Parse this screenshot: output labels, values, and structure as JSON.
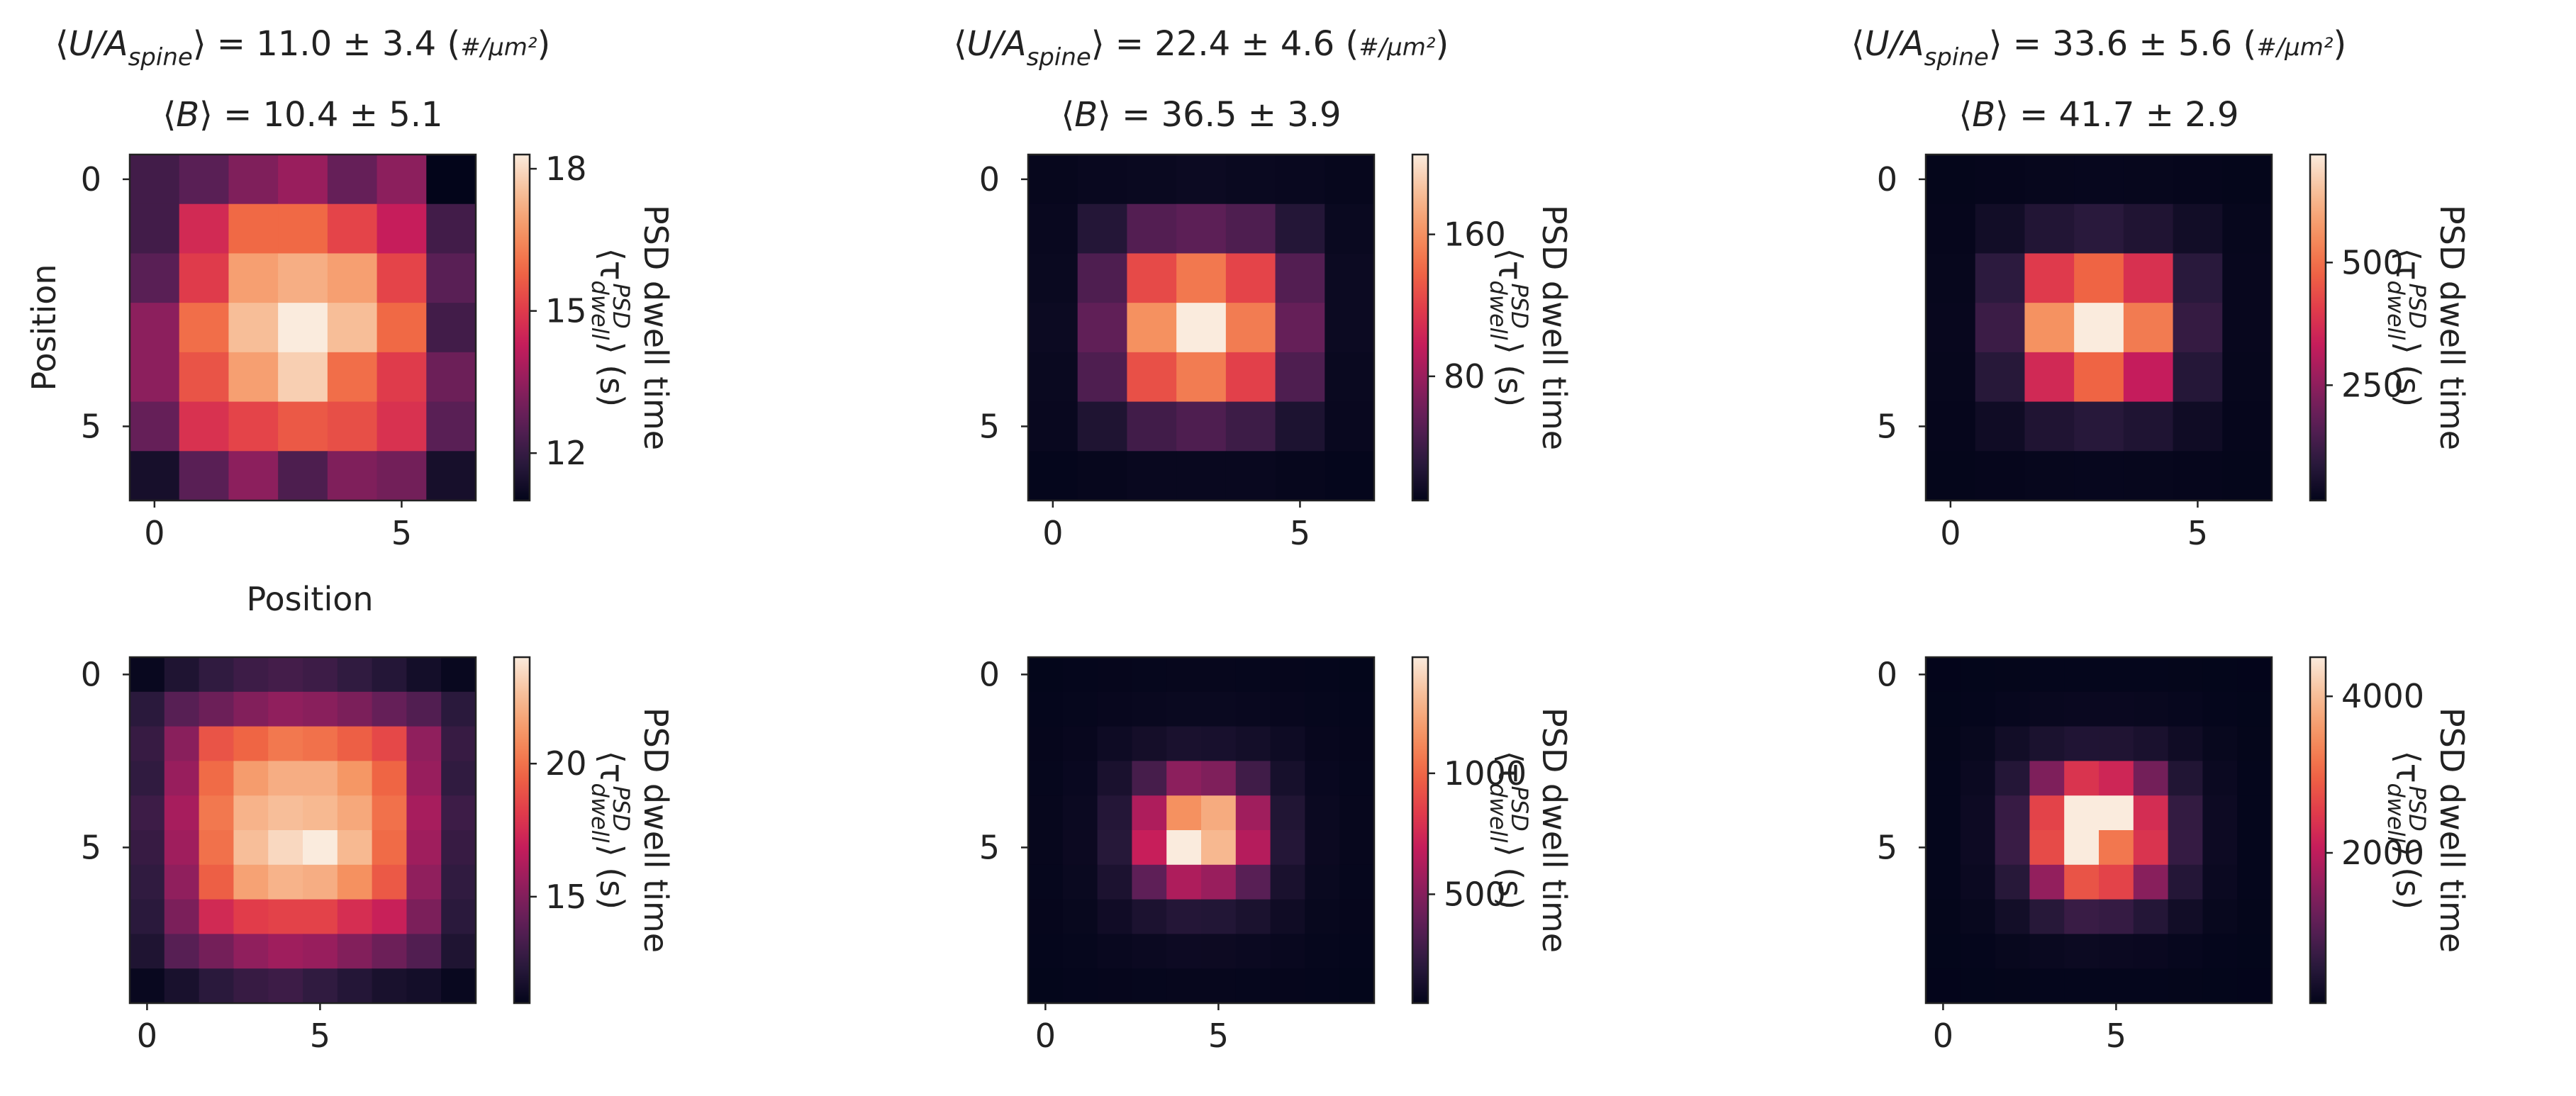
{
  "colormap": {
    "name": "rocket",
    "stops": [
      "#03051a",
      "#2b1a3d",
      "#5a1f56",
      "#8e1f5d",
      "#c41b5c",
      "#e13d4a",
      "#f06744",
      "#f59462",
      "#f7bd97",
      "#faebdd"
    ]
  },
  "chart_data": [
    {
      "type": "heatmap",
      "title_line1": "⟨U/A_spine⟩ = 11.0 ± 3.4 (#/μm²)",
      "title_line2": "⟨B⟩ = 10.4 ± 5.1",
      "xlabel": "Position",
      "ylabel": "Position",
      "xticks": [
        "0",
        "5"
      ],
      "yticks": [
        "0",
        "5"
      ],
      "colorbar_label": "PSD dwell time ⟨τ_dwell^PSD⟩ (s)",
      "colorbar_ticks": [
        "12",
        "15",
        "18"
      ],
      "vmin": 11,
      "vmax": 18.3,
      "values": [
        [
          12.2,
          12.6,
          13.2,
          13.6,
          12.8,
          13.4,
          11.0
        ],
        [
          12.2,
          14.6,
          15.9,
          15.9,
          15.2,
          14.3,
          12.2
        ],
        [
          12.6,
          15.0,
          16.9,
          17.2,
          16.9,
          15.2,
          12.6
        ],
        [
          13.4,
          16.0,
          17.5,
          18.3,
          17.5,
          15.9,
          12.2
        ],
        [
          13.4,
          15.5,
          16.9,
          17.8,
          16.0,
          15.0,
          12.9
        ],
        [
          12.8,
          14.8,
          15.2,
          15.6,
          15.4,
          14.8,
          12.6
        ],
        [
          11.4,
          12.6,
          13.4,
          12.4,
          13.2,
          13.0,
          11.4
        ]
      ]
    },
    {
      "type": "heatmap",
      "title_line1": "⟨U/A_spine⟩ = 22.4 ± 4.6 (#/μm²)",
      "title_line2": "⟨B⟩ = 36.5 ± 3.9",
      "xlabel": "",
      "ylabel": "",
      "xticks": [
        "0",
        "5"
      ],
      "yticks": [
        "0",
        "5"
      ],
      "colorbar_label": "PSD dwell time ⟨τ_dwell^PSD⟩ (s)",
      "colorbar_ticks": [
        "80",
        "160"
      ],
      "vmin": 10,
      "vmax": 205,
      "values": [
        [
          12,
          13,
          14,
          15,
          14,
          13,
          12
        ],
        [
          13,
          28,
          50,
          54,
          48,
          28,
          14
        ],
        [
          14,
          48,
          125,
          148,
          122,
          50,
          15
        ],
        [
          15,
          56,
          160,
          205,
          150,
          58,
          15
        ],
        [
          14,
          48,
          128,
          150,
          120,
          48,
          14
        ],
        [
          13,
          25,
          42,
          48,
          40,
          24,
          13
        ],
        [
          11,
          12,
          13,
          13,
          13,
          12,
          11
        ]
      ]
    },
    {
      "type": "heatmap",
      "title_line1": "⟨U/A_spine⟩ = 33.6 ± 5.6 (#/μm²)",
      "title_line2": "⟨B⟩ = 41.7 ± 2.9",
      "xlabel": "",
      "ylabel": "",
      "xticks": [
        "0",
        "5"
      ],
      "yticks": [
        "0",
        "5"
      ],
      "colorbar_label": "PSD dwell time ⟨τ_dwell^PSD⟩ (s)",
      "colorbar_ticks": [
        "250",
        "500"
      ],
      "vmin": 15,
      "vmax": 720,
      "values": [
        [
          18,
          20,
          22,
          23,
          22,
          20,
          18
        ],
        [
          20,
          45,
          75,
          90,
          72,
          44,
          22
        ],
        [
          22,
          95,
          400,
          480,
          380,
          90,
          24
        ],
        [
          24,
          120,
          560,
          720,
          520,
          110,
          24
        ],
        [
          22,
          85,
          360,
          480,
          330,
          82,
          22
        ],
        [
          20,
          40,
          72,
          86,
          70,
          40,
          20
        ],
        [
          18,
          20,
          22,
          23,
          22,
          20,
          18
        ]
      ]
    },
    {
      "type": "heatmap",
      "title_line1": "",
      "title_line2": "",
      "xlabel": "",
      "ylabel": "",
      "xticks": [
        "0",
        "5"
      ],
      "yticks": [
        "0",
        "5"
      ],
      "colorbar_label": "PSD dwell time ⟨τ_dwell^PSD⟩ (s)",
      "colorbar_ticks": [
        "15",
        "20"
      ],
      "vmin": 11,
      "vmax": 24,
      "values": [
        [
          11.2,
          12.0,
          12.6,
          13.0,
          13.2,
          13.0,
          12.6,
          12.2,
          11.6,
          11.2
        ],
        [
          12.4,
          13.8,
          14.4,
          15.0,
          15.4,
          15.2,
          14.8,
          14.2,
          13.6,
          12.4
        ],
        [
          12.8,
          15.2,
          19.0,
          19.6,
          20.2,
          20.0,
          19.4,
          18.6,
          15.4,
          12.8
        ],
        [
          12.6,
          15.6,
          19.8,
          21.4,
          22.0,
          22.0,
          21.2,
          19.6,
          15.6,
          12.6
        ],
        [
          13.0,
          16.0,
          20.2,
          22.2,
          22.6,
          22.4,
          21.8,
          20.0,
          16.0,
          13.0
        ],
        [
          12.8,
          15.8,
          20.0,
          22.6,
          23.4,
          24.0,
          22.4,
          19.8,
          15.8,
          12.8
        ],
        [
          12.6,
          15.4,
          19.4,
          21.6,
          22.2,
          22.0,
          21.0,
          19.2,
          15.4,
          12.6
        ],
        [
          12.4,
          14.8,
          17.4,
          18.2,
          18.4,
          18.4,
          17.6,
          17.0,
          14.8,
          12.4
        ],
        [
          12.0,
          13.8,
          14.6,
          15.4,
          15.8,
          15.6,
          15.0,
          14.4,
          13.6,
          12.0
        ],
        [
          11.2,
          11.8,
          12.4,
          12.8,
          13.0,
          12.6,
          12.2,
          11.8,
          11.6,
          11.2
        ]
      ]
    },
    {
      "type": "heatmap",
      "title_line1": "",
      "title_line2": "",
      "xlabel": "",
      "ylabel": "",
      "xticks": [
        "0",
        "5"
      ],
      "yticks": [
        "0",
        "5"
      ],
      "colorbar_label": "PSD dwell time ⟨τ_dwell^PSD⟩ (s)",
      "colorbar_ticks": [
        "500",
        "1000"
      ],
      "vmin": 50,
      "vmax": 1480,
      "values": [
        [
          55,
          58,
          60,
          62,
          64,
          64,
          62,
          60,
          58,
          55
        ],
        [
          58,
          62,
          68,
          74,
          78,
          78,
          74,
          68,
          62,
          58
        ],
        [
          60,
          68,
          95,
          120,
          140,
          135,
          118,
          95,
          68,
          60
        ],
        [
          62,
          75,
          140,
          300,
          520,
          480,
          280,
          130,
          75,
          62
        ],
        [
          64,
          82,
          180,
          620,
          1150,
          1250,
          580,
          170,
          82,
          64
        ],
        [
          64,
          84,
          190,
          700,
          1480,
          1300,
          640,
          180,
          84,
          64
        ],
        [
          62,
          78,
          150,
          380,
          620,
          560,
          360,
          140,
          78,
          62
        ],
        [
          60,
          70,
          105,
          150,
          180,
          175,
          145,
          100,
          70,
          60
        ],
        [
          58,
          62,
          72,
          82,
          90,
          88,
          80,
          72,
          62,
          58
        ],
        [
          55,
          58,
          60,
          62,
          64,
          64,
          62,
          60,
          58,
          55
        ]
      ]
    },
    {
      "type": "heatmap",
      "title_line1": "",
      "title_line2": "",
      "xlabel": "",
      "ylabel": "",
      "xticks": [
        "0",
        "5"
      ],
      "yticks": [
        "0",
        "5"
      ],
      "colorbar_label": "PSD dwell time ⟨τ_dwell^PSD⟩ (s)",
      "colorbar_ticks": [
        "2000",
        "4000"
      ],
      "vmin": 80,
      "vmax": 4500,
      "values": [
        [
          90,
          95,
          100,
          105,
          110,
          110,
          105,
          100,
          95,
          90
        ],
        [
          95,
          110,
          130,
          150,
          160,
          160,
          150,
          130,
          110,
          95
        ],
        [
          100,
          140,
          260,
          380,
          440,
          430,
          360,
          240,
          140,
          100
        ],
        [
          105,
          180,
          480,
          1400,
          2400,
          2200,
          1300,
          450,
          180,
          105
        ],
        [
          110,
          200,
          700,
          2600,
          4500,
          4500,
          2300,
          650,
          200,
          110
        ],
        [
          110,
          200,
          720,
          2700,
          4500,
          3200,
          2400,
          680,
          200,
          110
        ],
        [
          105,
          180,
          520,
          1600,
          2800,
          2600,
          1500,
          480,
          180,
          105
        ],
        [
          100,
          140,
          280,
          520,
          720,
          680,
          480,
          260,
          140,
          100
        ],
        [
          95,
          110,
          140,
          170,
          190,
          180,
          160,
          135,
          110,
          95
        ],
        [
          90,
          95,
          100,
          105,
          110,
          110,
          105,
          100,
          95,
          90
        ]
      ]
    }
  ]
}
